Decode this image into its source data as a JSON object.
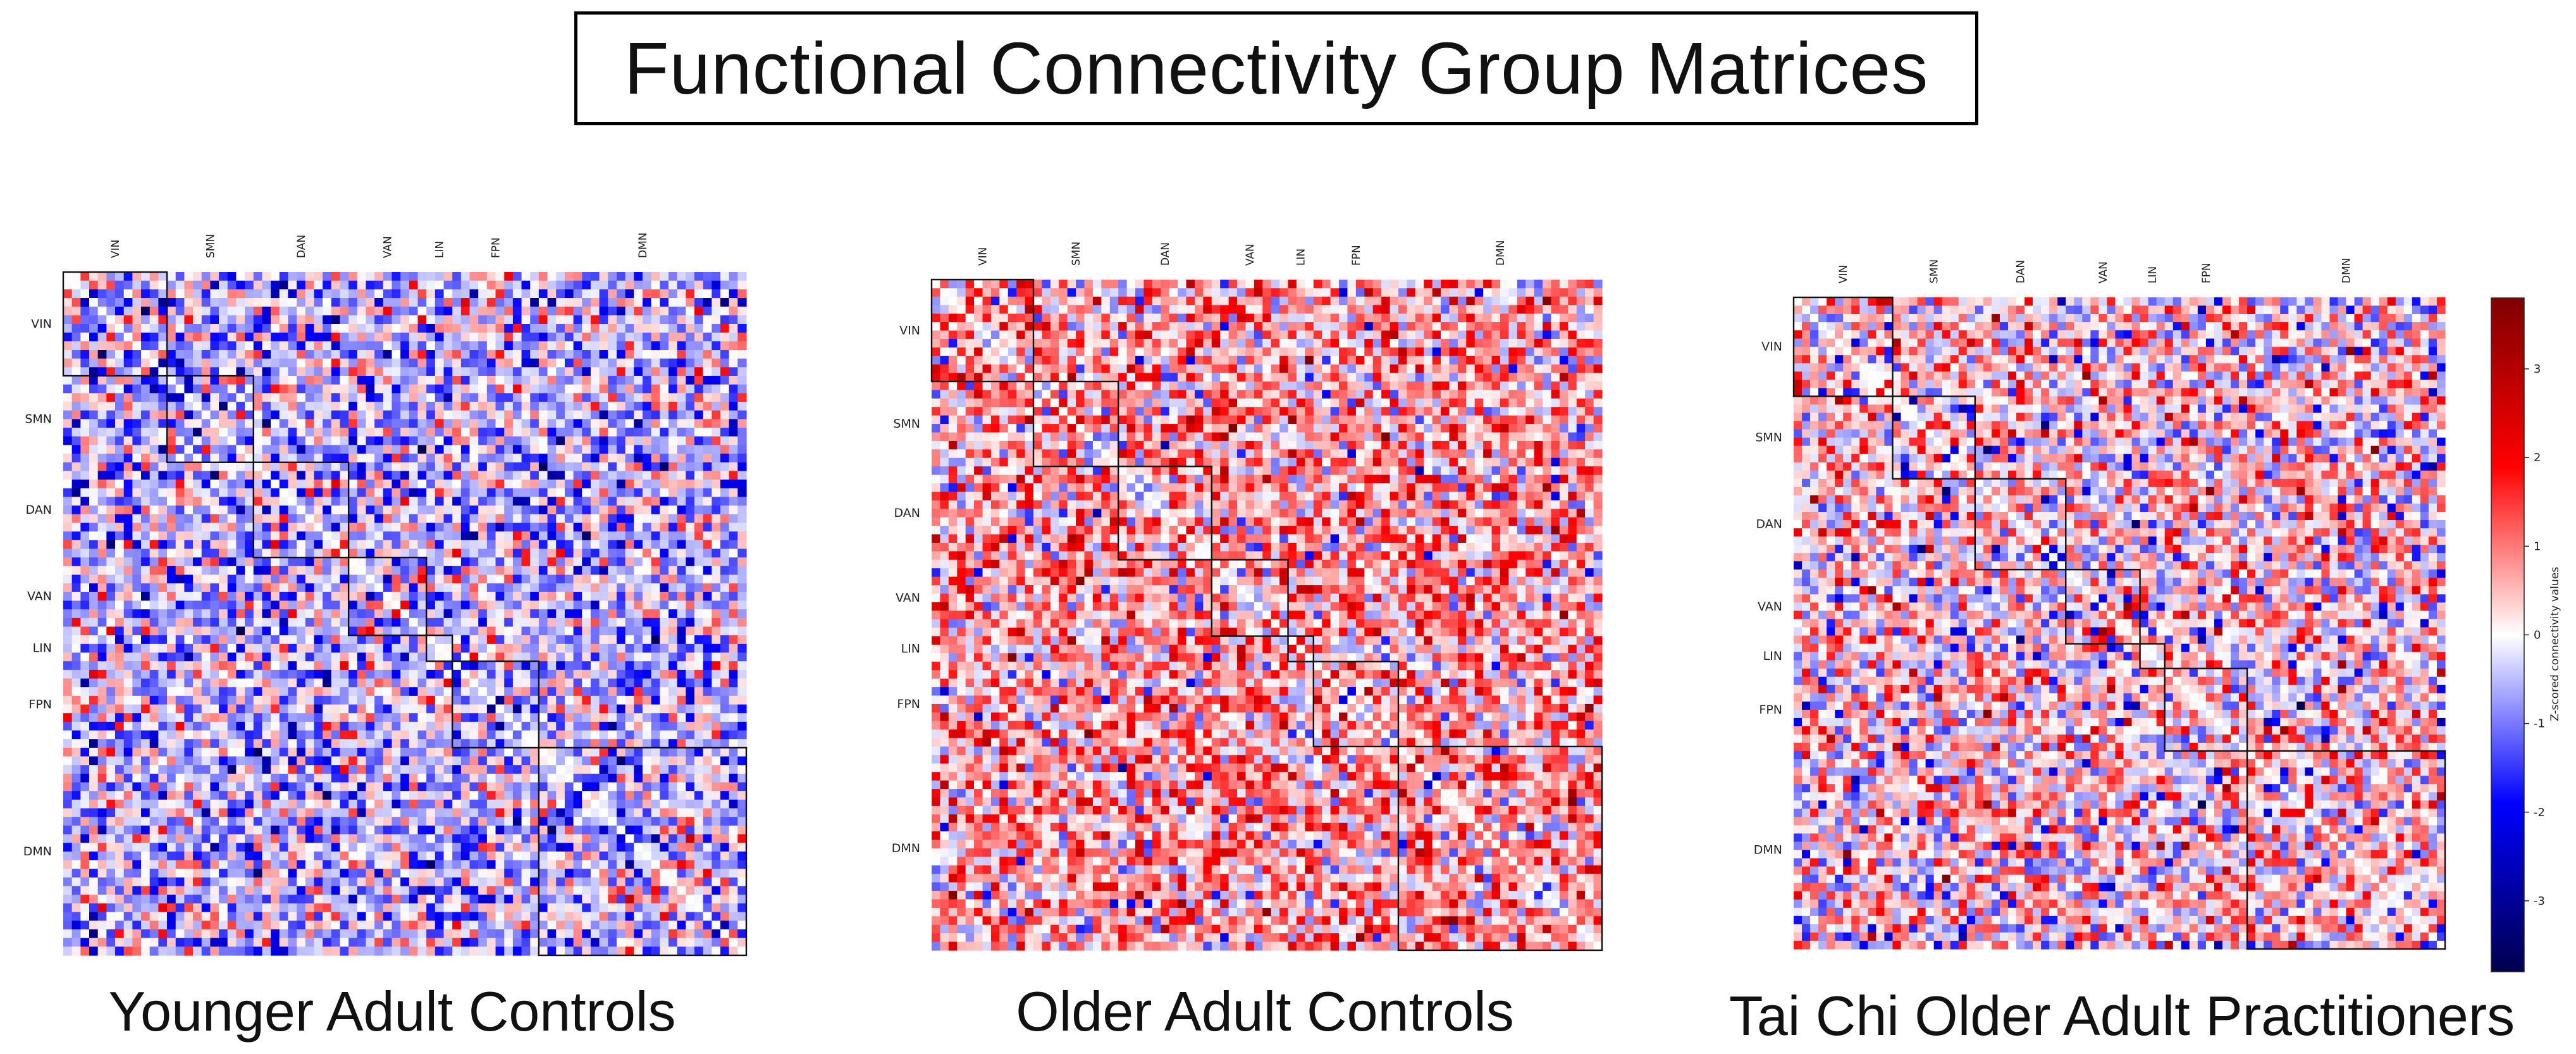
{
  "figure_title": "Functional Connectivity Group Matrices",
  "networks": [
    "VIN",
    "SMN",
    "DAN",
    "VAN",
    "LIN",
    "FPN",
    "DMN"
  ],
  "network_sizes": [
    12,
    10,
    11,
    9,
    3,
    10,
    24
  ],
  "chart_data": [
    {
      "type": "heatmap",
      "title": "Younger Adult Controls",
      "x_tick_labels": [
        "VIN",
        "SMN",
        "DAN",
        "VAN",
        "LIN",
        "FPN",
        "DMN"
      ],
      "y_tick_labels": [
        "VIN",
        "SMN",
        "DAN",
        "VAN",
        "LIN",
        "FPN",
        "DMN"
      ],
      "matrix_size": 79,
      "value_tendency": "predominantly negative (blue)",
      "mean_z": -0.4,
      "spread_z": 1.0
    },
    {
      "type": "heatmap",
      "title": "Older Adult Controls",
      "x_tick_labels": [
        "VIN",
        "SMN",
        "DAN",
        "VAN",
        "LIN",
        "FPN",
        "DMN"
      ],
      "y_tick_labels": [
        "VIN",
        "SMN",
        "DAN",
        "VAN",
        "LIN",
        "FPN",
        "DMN"
      ],
      "matrix_size": 79,
      "value_tendency": "predominantly positive (red)",
      "mean_z": 0.6,
      "spread_z": 1.0
    },
    {
      "type": "heatmap",
      "title": "Tai Chi Older Adult Practitioners",
      "x_tick_labels": [
        "VIN",
        "SMN",
        "DAN",
        "VAN",
        "LIN",
        "FPN",
        "DMN"
      ],
      "y_tick_labels": [
        "VIN",
        "SMN",
        "DAN",
        "VAN",
        "LIN",
        "FPN",
        "DMN"
      ],
      "matrix_size": 79,
      "value_tendency": "mixed, slightly positive",
      "mean_z": 0.2,
      "spread_z": 1.05
    }
  ],
  "colorbar": {
    "label": "Z-scored connectivity values",
    "range": [
      -3.8,
      3.8
    ],
    "ticks": [
      3,
      2,
      1,
      0,
      -1,
      -2,
      -3
    ],
    "colormap": "seismic",
    "colors": {
      "low": "#00004c",
      "mid_low": "#0000ff",
      "center": "#ffffff",
      "mid_high": "#ff0000",
      "high": "#800000"
    }
  }
}
